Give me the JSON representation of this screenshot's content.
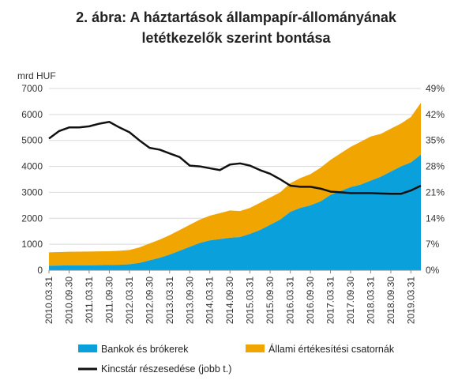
{
  "chart_data": {
    "type": "area",
    "title_line1": "2. ábra: A háztartások állampapír-állományának",
    "title_line2": "letétkezelők szerint bontása",
    "y_left_unit": "mrd HUF",
    "ylim_left": [
      0,
      7000
    ],
    "y_left_ticks": [
      "0",
      "1000",
      "2000",
      "3000",
      "4000",
      "5000",
      "6000",
      "7000"
    ],
    "ylim_right": [
      0,
      49
    ],
    "y_right_ticks": [
      "0%",
      "7%",
      "14%",
      "21%",
      "28%",
      "35%",
      "42%",
      "49%"
    ],
    "x_tick_labels": [
      "2010.03.31",
      "2010.09.30",
      "2011.03.31",
      "2011.09.30",
      "2012.03.31",
      "2012.09.30",
      "2013.03.31",
      "2013.09.30",
      "2014.03.31",
      "2014.09.30",
      "2015.03.31",
      "2015.09.30",
      "2016.03.31",
      "2016.09.30",
      "2017.03.31",
      "2017.09.30",
      "2018.03.31",
      "2018.09.30",
      "2019.03.31"
    ],
    "x_range": [
      "2010.03.31",
      "2019.06.30"
    ],
    "grid": true,
    "legend_position": "bottom",
    "colors": {
      "bank": "#0aa0dc",
      "state": "#f0a500",
      "treasury": "#111111"
    },
    "series": [
      {
        "name": "Bankok és brókerek",
        "kind": "stacked-area",
        "color": "#0aa0dc",
        "x": [
          "2010.03.31",
          "2010.06.30",
          "2010.09.30",
          "2010.12.31",
          "2011.03.31",
          "2011.06.30",
          "2011.09.30",
          "2011.12.31",
          "2012.03.31",
          "2012.06.30",
          "2012.09.30",
          "2012.12.31",
          "2013.03.31",
          "2013.06.30",
          "2013.09.30",
          "2013.12.31",
          "2014.03.31",
          "2014.06.30",
          "2014.09.30",
          "2014.12.31",
          "2015.03.31",
          "2015.06.30",
          "2015.09.30",
          "2015.12.31",
          "2016.03.31",
          "2016.06.30",
          "2016.09.30",
          "2016.12.31",
          "2017.03.31",
          "2017.06.30",
          "2017.09.30",
          "2017.12.31",
          "2018.03.31",
          "2018.06.30",
          "2018.09.30",
          "2018.12.31",
          "2019.03.31",
          "2019.06.30"
        ],
        "values": [
          170,
          180,
          185,
          190,
          190,
          195,
          200,
          210,
          230,
          280,
          380,
          480,
          600,
          750,
          900,
          1050,
          1150,
          1200,
          1250,
          1280,
          1400,
          1550,
          1750,
          1950,
          2250,
          2400,
          2500,
          2650,
          2900,
          3050,
          3200,
          3300,
          3450,
          3600,
          3800,
          4000,
          4150,
          4450
        ]
      },
      {
        "name": "Állami értékesítési csatornák",
        "kind": "stacked-area",
        "color": "#f0a500",
        "x": [
          "2010.03.31",
          "2010.06.30",
          "2010.09.30",
          "2010.12.31",
          "2011.03.31",
          "2011.06.30",
          "2011.09.30",
          "2011.12.31",
          "2012.03.31",
          "2012.06.30",
          "2012.09.30",
          "2012.12.31",
          "2013.03.31",
          "2013.06.30",
          "2013.09.30",
          "2013.12.31",
          "2014.03.31",
          "2014.06.30",
          "2014.09.30",
          "2014.12.31",
          "2015.03.31",
          "2015.06.30",
          "2015.09.30",
          "2015.12.31",
          "2016.03.31",
          "2016.06.30",
          "2016.09.30",
          "2016.12.31",
          "2017.03.31",
          "2017.06.30",
          "2017.09.30",
          "2017.12.31",
          "2018.03.31",
          "2018.06.30",
          "2018.09.30",
          "2018.12.31",
          "2019.03.31",
          "2019.06.30"
        ],
        "values": [
          520,
          520,
          525,
          525,
          530,
          530,
          530,
          540,
          550,
          600,
          650,
          700,
          750,
          800,
          850,
          900,
          950,
          1000,
          1050,
          1000,
          1000,
          1050,
          1050,
          1050,
          1100,
          1150,
          1200,
          1300,
          1350,
          1450,
          1550,
          1650,
          1700,
          1650,
          1650,
          1650,
          1750,
          2000
        ]
      },
      {
        "name": "Kincstár részesedése (jobb t.)",
        "kind": "line",
        "axis": "right",
        "color": "#111111",
        "x": [
          "2010.03.31",
          "2010.06.30",
          "2010.09.30",
          "2010.12.31",
          "2011.03.31",
          "2011.06.30",
          "2011.09.30",
          "2011.12.31",
          "2012.03.31",
          "2012.06.30",
          "2012.09.30",
          "2012.12.31",
          "2013.03.31",
          "2013.06.30",
          "2013.09.30",
          "2013.12.31",
          "2014.03.31",
          "2014.06.30",
          "2014.09.30",
          "2014.12.31",
          "2015.03.31",
          "2015.06.30",
          "2015.09.30",
          "2015.12.31",
          "2016.03.31",
          "2016.06.30",
          "2016.09.30",
          "2016.12.31",
          "2017.03.31",
          "2017.06.30",
          "2017.09.30",
          "2017.12.31",
          "2018.03.31",
          "2018.06.30",
          "2018.09.30",
          "2018.12.31",
          "2019.03.31",
          "2019.06.30"
        ],
        "values": [
          35.5,
          37.5,
          38.5,
          38.5,
          38.8,
          39.5,
          40.0,
          38.5,
          37.2,
          35.0,
          33.0,
          32.5,
          31.5,
          30.5,
          28.2,
          28.0,
          27.5,
          27.0,
          28.5,
          28.8,
          28.2,
          27.0,
          26.0,
          24.5,
          22.8,
          22.5,
          22.5,
          22.0,
          21.2,
          21.0,
          20.8,
          20.8,
          20.8,
          20.7,
          20.6,
          20.6,
          21.5,
          22.8
        ]
      }
    ]
  }
}
